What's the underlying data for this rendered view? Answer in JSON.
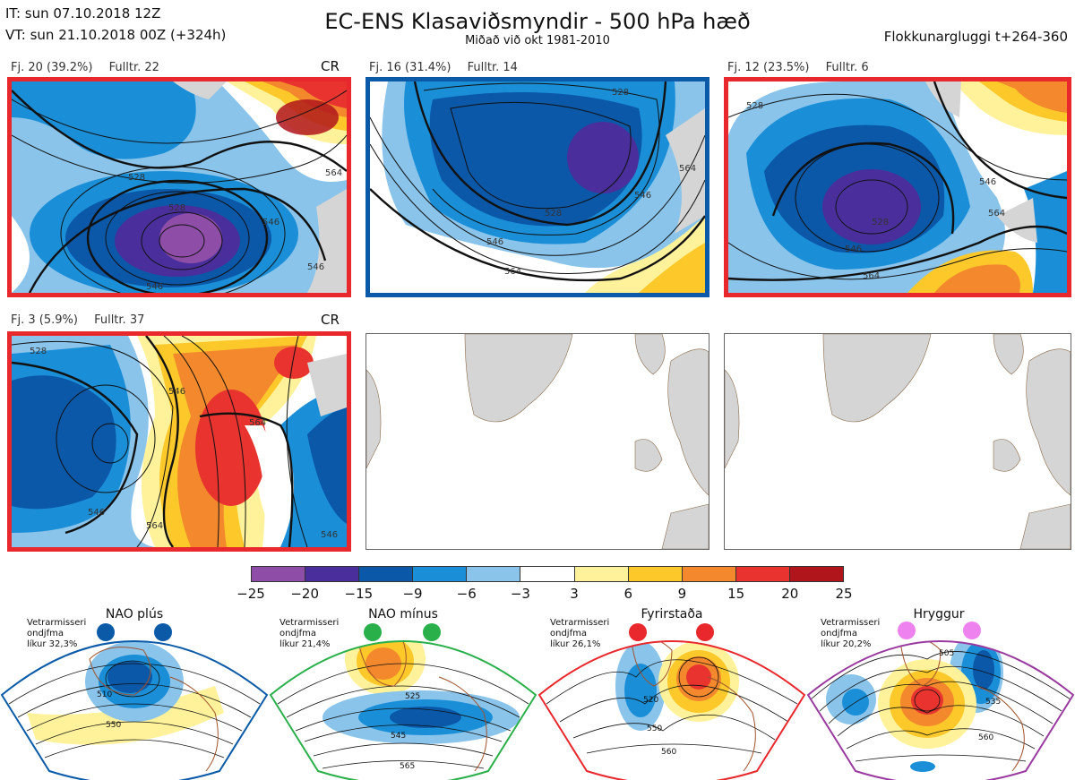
{
  "header": {
    "it_line": "IT: sun 07.10.2018 12Z",
    "vt_line": "VT: sun 21.10.2018 00Z  (+324h)",
    "title": "EC-ENS Klasaviðsmyndir - 500 hPa hæð",
    "subtitle": "Miðað við okt 1981-2010",
    "window": "Flokkunargluggi t+264-360"
  },
  "clusters": [
    {
      "fj": "Fj. 20 (39.2%)",
      "fulltr": "Fulltr. 22",
      "tag": "CR",
      "border": "#e8282c"
    },
    {
      "fj": "Fj. 16 (31.4%)",
      "fulltr": "Fulltr. 14",
      "tag": "",
      "border": "#0a5aa8"
    },
    {
      "fj": "Fj. 12 (23.5%)",
      "fulltr": "Fulltr. 6",
      "tag": "",
      "border": "#e8282c"
    },
    {
      "fj": "Fj. 3 (5.9%)",
      "fulltr": "Fulltr. 37",
      "tag": "CR",
      "border": "#e8282c"
    }
  ],
  "contour_labels": {
    "p1": [
      "528",
      "546",
      "564",
      "528",
      "546",
      "546"
    ],
    "p2": [
      "528",
      "546",
      "564",
      "528",
      "564",
      "546"
    ],
    "p3": [
      "528",
      "546",
      "564",
      "546",
      "564",
      "528"
    ],
    "p4": [
      "528",
      "546",
      "564",
      "546",
      "564",
      "546"
    ]
  },
  "colorbar": {
    "ticks": [
      "−25",
      "−20",
      "−15",
      "−9",
      "−6",
      "−3",
      "3",
      "6",
      "9",
      "15",
      "20",
      "25"
    ],
    "colors": [
      "#8e4ea8",
      "#4a2f9c",
      "#0b57a8",
      "#1a8fd8",
      "#8ac4ea",
      "#ffffff",
      "#fff29a",
      "#fdc92a",
      "#f3892c",
      "#e8332f",
      "#b0151c"
    ]
  },
  "regimes": [
    {
      "name": "NAO plús",
      "note": [
        "Vetrarmisseri",
        "ondjfma",
        "líkur 32,3%"
      ],
      "color": "#0a5aa8",
      "labels": [
        "510",
        "550"
      ]
    },
    {
      "name": "NAO mínus",
      "note": [
        "Vetrarmisseri",
        "ondjfma",
        "líkur 21,4%"
      ],
      "color": "#2ab04a",
      "labels": [
        "525",
        "545",
        "565"
      ]
    },
    {
      "name": "Fyrirstaða",
      "note": [
        "Vetrarmisseri",
        "ondjfma",
        "líkur 26,1%"
      ],
      "color": "#e8282c",
      "labels": [
        "520",
        "550",
        "560"
      ]
    },
    {
      "name": "Hryggur",
      "note": [
        "Vetrarmisseri",
        "ondjfma",
        "líkur 20,2%"
      ],
      "color": "#9a3aa0",
      "labels": [
        "505",
        "535",
        "560"
      ]
    }
  ]
}
